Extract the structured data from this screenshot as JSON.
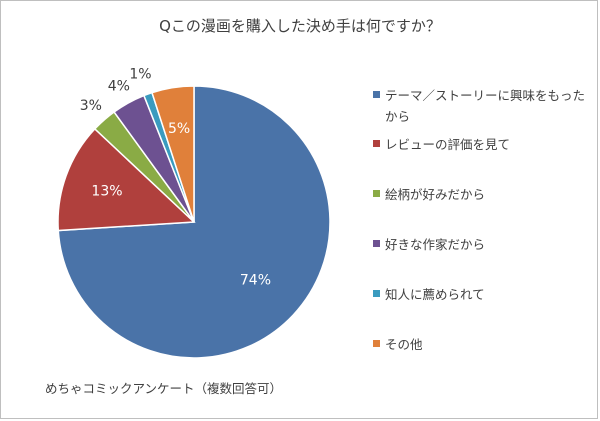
{
  "chart_data": {
    "type": "pie",
    "title": "Qこの漫画を購入した決め手は何ですか？",
    "slices": [
      {
        "label": "テーマ／ストーリーに興味をもったから",
        "value": 74,
        "data_label": "74%",
        "color": "#4a73a8"
      },
      {
        "label": "レビューの評価を見て",
        "value": 13,
        "data_label": "13%",
        "color": "#b0403d"
      },
      {
        "label": "絵柄が好みだから",
        "value": 3,
        "data_label": "3%",
        "color": "#8aab45"
      },
      {
        "label": "好きな作家だから",
        "value": 4,
        "data_label": "4%",
        "color": "#6d5191"
      },
      {
        "label": "知人に薦められて",
        "value": 1,
        "data_label": "1%",
        "color": "#3a9bbf"
      },
      {
        "label": "その他",
        "value": 5,
        "data_label": "5%",
        "color": "#e0803a"
      }
    ],
    "legend_position": "right"
  },
  "source_note": "めちゃコミックアンケート（複数回答可）"
}
